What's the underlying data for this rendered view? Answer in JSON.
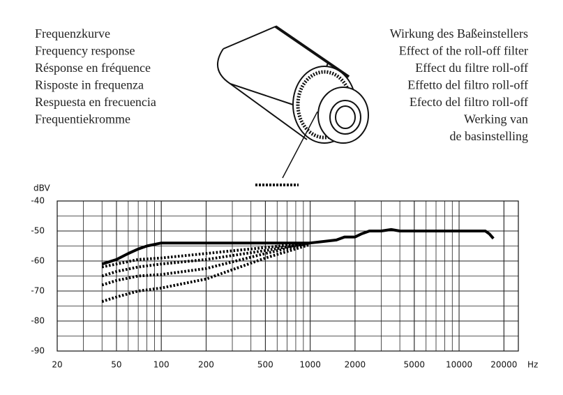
{
  "texts": {
    "left": [
      "Frequenzkurve",
      "Frequency response",
      "Résponse en fréquence",
      "Risposte in frequenza",
      "Respuesta en frecuencia",
      "Frequentiekromme"
    ],
    "right": [
      "Wirkung des Baßeinstellers",
      "Effect of the roll-off filter",
      "Effect du filtre roll-off",
      "Effetto del filtro roll-off",
      "Efecto del filtro roll-off",
      "Werking van",
      "de basinstelling"
    ]
  },
  "chart_data": {
    "type": "line",
    "xscale": "log",
    "grid": true,
    "ylabel": "dBV",
    "xlabel": "Hz",
    "xlim": [
      20,
      25000
    ],
    "ylim": [
      -90,
      -40
    ],
    "xticks": [
      20,
      50,
      100,
      200,
      500,
      1000,
      2000,
      5000,
      10000,
      20000
    ],
    "yticks": [
      -40,
      -50,
      -60,
      -70,
      -80,
      -90
    ],
    "series": [
      {
        "color": "#000000",
        "style": "solid",
        "x": [
          40,
          50,
          60,
          70,
          80,
          100,
          200,
          500,
          1000,
          1500,
          1700,
          2000,
          2200,
          2500,
          3000,
          3500,
          4000,
          5000,
          7000,
          10000,
          13000,
          15000,
          16000,
          17000
        ],
        "values": [
          -61,
          -59.5,
          -57.5,
          -56,
          -55,
          -54,
          -54,
          -54,
          -54,
          -53,
          -52,
          -52,
          -51,
          -50,
          -50,
          -49.5,
          -50,
          -50,
          -50,
          -50,
          -50,
          -50,
          -51,
          -52.5
        ]
      },
      {
        "color": "#000000",
        "style": "dotted",
        "x": [
          40,
          50,
          70,
          100,
          200,
          500,
          1000
        ],
        "values": [
          -62,
          -61,
          -59.5,
          -59,
          -57.5,
          -55.5,
          -54
        ]
      },
      {
        "color": "#000000",
        "style": "dotted",
        "x": [
          40,
          50,
          70,
          100,
          200,
          500,
          1000
        ],
        "values": [
          -65,
          -63.5,
          -62,
          -61,
          -59.5,
          -56.5,
          -54
        ]
      },
      {
        "color": "#000000",
        "style": "dotted",
        "x": [
          40,
          50,
          70,
          100,
          200,
          500,
          1000
        ],
        "values": [
          -68,
          -66.5,
          -65,
          -64.5,
          -62.5,
          -57.5,
          -54
        ]
      },
      {
        "color": "#000000",
        "style": "dotted",
        "x": [
          40,
          50,
          70,
          100,
          200,
          500,
          1000
        ],
        "values": [
          -73.5,
          -72,
          -70,
          -69,
          -66,
          -59,
          -54.5
        ]
      }
    ]
  }
}
